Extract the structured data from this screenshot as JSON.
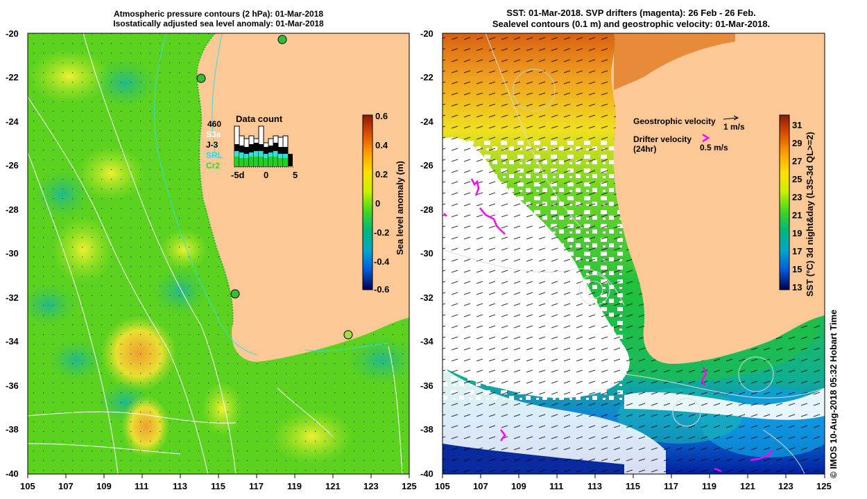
{
  "left_panel": {
    "title_line1": "Atmospheric pressure contours (2 hPa): 01-Mar-2018",
    "title_line2": "Isostatically adjusted sea level anomaly: 01-Mar-2018",
    "colorbar": {
      "label": "Sea level anomaly (m)",
      "ticks": [
        "0.6",
        "0.4",
        "0.2",
        "0",
        "-0.2",
        "-0.4",
        "-0.6"
      ],
      "colors": [
        "#8b1a00",
        "#d84a00",
        "#ffa000",
        "#ffe000",
        "#c8f000",
        "#40d820",
        "#00b878",
        "#00a8c8",
        "#0060e0",
        "#0010a0",
        "#000050"
      ]
    },
    "inset": {
      "title": "Data count",
      "labels": [
        "460",
        "S3a",
        "J-3",
        "SRL",
        "Cr2"
      ],
      "label_colors": [
        "#000000",
        "#ffffff",
        "#000000",
        "#00e8ff",
        "#22e022"
      ],
      "x_ticks": [
        "-5d",
        "0",
        "5"
      ]
    }
  },
  "right_panel": {
    "title_line1": "SST: 01-Mar-2018. SVP drifters (magenta): 26 Feb - 26 Feb.",
    "title_line2": "Sealevel contours (0.1 m) and geostrophic velocity: 01-Mar-2018.",
    "legend": {
      "geostrophic_label": "Geostrophic velocity",
      "geostrophic_scale": "1 m/s",
      "drifter_label_line1": "Drifter velocity",
      "drifter_label_line2": "(24hr)",
      "drifter_scale": "0.5 m/s",
      "drifter_color": "#ff00ff"
    },
    "colorbar": {
      "label": "SST (°C) 3d night&day (L3S-3d QL>=2)",
      "ticks": [
        "31",
        "29",
        "27",
        "25",
        "23",
        "21",
        "19",
        "17",
        "15",
        "13"
      ],
      "colors": [
        "#8b1a00",
        "#d84a00",
        "#ffa000",
        "#ffe000",
        "#c8f000",
        "#40d820",
        "#00b878",
        "#00a8c8",
        "#0060e0",
        "#0010a0",
        "#000050"
      ]
    }
  },
  "axes": {
    "lat_ticks": [
      "-20",
      "-22",
      "-24",
      "-26",
      "-28",
      "-30",
      "-32",
      "-34",
      "-36",
      "-38",
      "-40"
    ],
    "lon_ticks": [
      "105",
      "107",
      "109",
      "111",
      "113",
      "115",
      "117",
      "119",
      "121",
      "123",
      "125"
    ]
  },
  "footer": {
    "credit": "© IMOS 10-Aug-2018 05:32 Hobart Time"
  },
  "colors": {
    "land": "#fcc896",
    "ocean_green": "#5ad21e",
    "text": "#000000"
  }
}
